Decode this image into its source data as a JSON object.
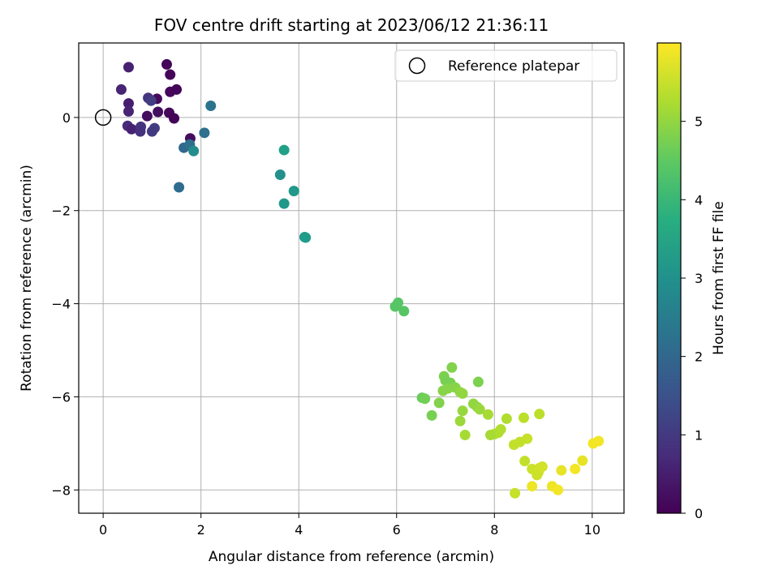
{
  "chart_data": {
    "type": "scatter",
    "title": "FOV centre drift starting at 2023/06/12 21:36:11",
    "xlabel": "Angular distance from reference (arcmin)",
    "ylabel": "Rotation from reference (arcmin)",
    "xlim": [
      -0.5,
      10.65
    ],
    "ylim": [
      -8.5,
      1.6
    ],
    "xticks": [
      0,
      2,
      4,
      6,
      8,
      10
    ],
    "yticks": [
      0,
      -2,
      -4,
      -6,
      -8
    ],
    "grid": true,
    "legend": {
      "placement": "top-right",
      "entries": [
        {
          "label": "Reference platepar",
          "marker": "open-circle"
        }
      ]
    },
    "reference_point": {
      "x": 0,
      "y": 0
    },
    "colorbar": {
      "label": "Hours from first FF file",
      "colormap": "viridis",
      "range": [
        0,
        6.0
      ],
      "ticks": [
        0,
        1,
        2,
        3,
        4,
        5
      ]
    },
    "points": [
      {
        "x": 0.52,
        "y": 1.08,
        "h": 0.55
      },
      {
        "x": 1.3,
        "y": 1.14,
        "h": 0.05
      },
      {
        "x": 1.37,
        "y": 0.92,
        "h": 0.1
      },
      {
        "x": 0.37,
        "y": 0.6,
        "h": 0.6
      },
      {
        "x": 1.37,
        "y": 0.55,
        "h": 0.12
      },
      {
        "x": 1.5,
        "y": 0.6,
        "h": 0.08
      },
      {
        "x": 1.1,
        "y": 0.4,
        "h": 0.15
      },
      {
        "x": 0.92,
        "y": 0.42,
        "h": 0.9
      },
      {
        "x": 0.98,
        "y": 0.36,
        "h": 1.1
      },
      {
        "x": 0.52,
        "y": 0.3,
        "h": 0.5
      },
      {
        "x": 0.52,
        "y": 0.13,
        "h": 0.6
      },
      {
        "x": 1.12,
        "y": 0.12,
        "h": 0.2
      },
      {
        "x": 1.35,
        "y": 0.1,
        "h": 0.12
      },
      {
        "x": 0.9,
        "y": 0.03,
        "h": 0.18
      },
      {
        "x": 1.45,
        "y": -0.02,
        "h": 0.05
      },
      {
        "x": 0.5,
        "y": -0.18,
        "h": 0.7
      },
      {
        "x": 0.58,
        "y": -0.25,
        "h": 0.55
      },
      {
        "x": 0.77,
        "y": -0.2,
        "h": 0.9
      },
      {
        "x": 0.76,
        "y": -0.3,
        "h": 0.85
      },
      {
        "x": 1.05,
        "y": -0.23,
        "h": 1.1
      },
      {
        "x": 1.0,
        "y": -0.3,
        "h": 1.0
      },
      {
        "x": 1.78,
        "y": -0.45,
        "h": 0.2
      },
      {
        "x": 1.65,
        "y": -0.65,
        "h": 2.0
      },
      {
        "x": 1.77,
        "y": -0.58,
        "h": 2.2
      },
      {
        "x": 1.85,
        "y": -0.72,
        "h": 2.9
      },
      {
        "x": 2.07,
        "y": -0.33,
        "h": 2.2
      },
      {
        "x": 2.2,
        "y": 0.25,
        "h": 2.3
      },
      {
        "x": 1.55,
        "y": -1.5,
        "h": 2.1
      },
      {
        "x": 3.7,
        "y": -0.7,
        "h": 3.4
      },
      {
        "x": 3.62,
        "y": -1.23,
        "h": 3.0
      },
      {
        "x": 3.9,
        "y": -1.58,
        "h": 3.2
      },
      {
        "x": 3.7,
        "y": -1.85,
        "h": 3.2
      },
      {
        "x": 4.12,
        "y": -2.57,
        "h": 3.2
      },
      {
        "x": 4.14,
        "y": -2.58,
        "h": 3.3
      },
      {
        "x": 5.97,
        "y": -4.06,
        "h": 4.4
      },
      {
        "x": 6.03,
        "y": -3.98,
        "h": 4.4
      },
      {
        "x": 6.15,
        "y": -4.16,
        "h": 4.4
      },
      {
        "x": 7.13,
        "y": -5.37,
        "h": 4.85
      },
      {
        "x": 6.97,
        "y": -5.56,
        "h": 4.8
      },
      {
        "x": 7.0,
        "y": -5.65,
        "h": 4.75
      },
      {
        "x": 7.1,
        "y": -5.7,
        "h": 4.75
      },
      {
        "x": 7.2,
        "y": -5.8,
        "h": 4.9
      },
      {
        "x": 7.05,
        "y": -5.82,
        "h": 4.9
      },
      {
        "x": 6.95,
        "y": -5.87,
        "h": 4.9
      },
      {
        "x": 7.3,
        "y": -5.9,
        "h": 5.0
      },
      {
        "x": 7.35,
        "y": -5.93,
        "h": 5.0
      },
      {
        "x": 7.67,
        "y": -5.68,
        "h": 4.8
      },
      {
        "x": 6.52,
        "y": -6.02,
        "h": 4.6
      },
      {
        "x": 6.58,
        "y": -6.04,
        "h": 4.7
      },
      {
        "x": 6.87,
        "y": -6.13,
        "h": 4.85
      },
      {
        "x": 7.57,
        "y": -6.15,
        "h": 5.0
      },
      {
        "x": 7.65,
        "y": -6.22,
        "h": 5.0
      },
      {
        "x": 7.7,
        "y": -6.27,
        "h": 5.1
      },
      {
        "x": 7.35,
        "y": -6.3,
        "h": 5.05
      },
      {
        "x": 7.87,
        "y": -6.38,
        "h": 5.2
      },
      {
        "x": 6.72,
        "y": -6.4,
        "h": 4.75
      },
      {
        "x": 7.3,
        "y": -6.52,
        "h": 5.1
      },
      {
        "x": 8.25,
        "y": -6.47,
        "h": 5.3
      },
      {
        "x": 8.6,
        "y": -6.45,
        "h": 5.4
      },
      {
        "x": 8.92,
        "y": -6.37,
        "h": 5.4
      },
      {
        "x": 8.13,
        "y": -6.7,
        "h": 5.3
      },
      {
        "x": 8.08,
        "y": -6.77,
        "h": 5.3
      },
      {
        "x": 8.0,
        "y": -6.8,
        "h": 5.3
      },
      {
        "x": 7.92,
        "y": -6.82,
        "h": 5.2
      },
      {
        "x": 7.4,
        "y": -6.82,
        "h": 5.2
      },
      {
        "x": 8.67,
        "y": -6.9,
        "h": 5.5
      },
      {
        "x": 8.52,
        "y": -6.97,
        "h": 5.45
      },
      {
        "x": 8.4,
        "y": -7.03,
        "h": 5.45
      },
      {
        "x": 10.13,
        "y": -6.95,
        "h": 5.9
      },
      {
        "x": 10.02,
        "y": -7.0,
        "h": 5.9
      },
      {
        "x": 9.8,
        "y": -7.37,
        "h": 5.8
      },
      {
        "x": 8.62,
        "y": -7.38,
        "h": 5.45
      },
      {
        "x": 8.98,
        "y": -7.5,
        "h": 5.6
      },
      {
        "x": 8.92,
        "y": -7.53,
        "h": 5.6
      },
      {
        "x": 8.77,
        "y": -7.55,
        "h": 5.55
      },
      {
        "x": 9.65,
        "y": -7.55,
        "h": 5.9
      },
      {
        "x": 9.37,
        "y": -7.58,
        "h": 5.8
      },
      {
        "x": 8.9,
        "y": -7.62,
        "h": 5.6
      },
      {
        "x": 8.87,
        "y": -7.68,
        "h": 5.55
      },
      {
        "x": 8.77,
        "y": -7.92,
        "h": 5.85
      },
      {
        "x": 9.18,
        "y": -7.92,
        "h": 5.85
      },
      {
        "x": 9.3,
        "y": -8.0,
        "h": 5.9
      },
      {
        "x": 8.42,
        "y": -8.07,
        "h": 5.5
      }
    ]
  }
}
